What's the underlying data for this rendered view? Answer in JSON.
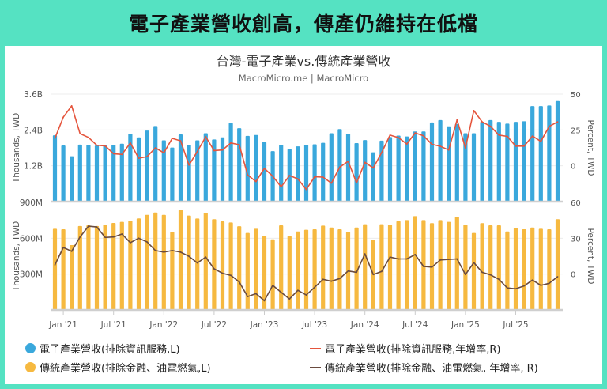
{
  "headline": "電子產業營收創高，傳產仍維持在低檔",
  "chart_data": {
    "type": "bar+line",
    "title": "台灣-電子產業vs.傳統產業營收",
    "subtitle": "MacroMicro.me | MacroMicro",
    "x": [
      "2020-12",
      "2021-01",
      "2021-02",
      "2021-03",
      "2021-04",
      "2021-05",
      "2021-06",
      "2021-07",
      "2021-08",
      "2021-09",
      "2021-10",
      "2021-11",
      "2021-12",
      "2022-01",
      "2022-02",
      "2022-03",
      "2022-04",
      "2022-05",
      "2022-06",
      "2022-07",
      "2022-08",
      "2022-09",
      "2022-10",
      "2022-11",
      "2022-12",
      "2023-01",
      "2023-02",
      "2023-03",
      "2023-04",
      "2023-05",
      "2023-06",
      "2023-07",
      "2023-08",
      "2023-09",
      "2023-10",
      "2023-11",
      "2023-12",
      "2024-01",
      "2024-02",
      "2024-03",
      "2024-04",
      "2024-05",
      "2024-06",
      "2024-07",
      "2024-08",
      "2024-09",
      "2024-10",
      "2024-11",
      "2024-12",
      "2025-01",
      "2025-02",
      "2025-03",
      "2025-04",
      "2025-05",
      "2025-06",
      "2025-07",
      "2025-08",
      "2025-09",
      "2025-10",
      "2025-11",
      "2025-12"
    ],
    "x_tick_labels": [
      "Jan '21",
      "Jul '21",
      "Jan '22",
      "Jul '22",
      "Jan '23",
      "Jul '23",
      "Jan '24",
      "Jul '24",
      "Jan '25",
      "Jul '25"
    ],
    "grid": true,
    "legend_position": "bottom",
    "panels": [
      {
        "left_axis": {
          "label": "Thousands, TWD",
          "ticks": [
            "1.2B",
            "2.4B",
            "3.6B"
          ],
          "range_billion": [
            0,
            3.6
          ]
        },
        "right_axis": {
          "label": "Percent, TWD",
          "ticks": [
            "0",
            "25",
            "50"
          ],
          "range": [
            -25,
            50
          ]
        },
        "series": [
          {
            "name": "電子產業營收(排除資訊服務,L)",
            "type": "bar",
            "axis": "left",
            "unit": "billion",
            "color": "#3aa8dc",
            "values": [
              2.22,
              1.88,
              1.52,
              1.91,
              1.9,
              1.88,
              1.9,
              1.9,
              1.94,
              2.27,
              2.15,
              2.38,
              2.53,
              2.05,
              1.81,
              2.25,
              1.9,
              2.05,
              2.29,
              2.08,
              2.15,
              2.63,
              2.46,
              2.2,
              2.23,
              2.0,
              1.69,
              1.9,
              1.76,
              1.85,
              1.9,
              1.92,
              1.97,
              2.29,
              2.43,
              2.27,
              1.96,
              2.06,
              1.65,
              2.04,
              2.16,
              2.21,
              2.18,
              2.35,
              2.35,
              2.65,
              2.73,
              2.52,
              2.6,
              2.29,
              2.29,
              2.67,
              2.73,
              2.67,
              2.61,
              2.67,
              2.69,
              3.2,
              3.2,
              3.22,
              3.37
            ]
          },
          {
            "name": "電子產業營收(排除資訊服務,年增率,R)",
            "type": "line",
            "axis": "right",
            "color": "#e5553d",
            "values": [
              19.2,
              33.9,
              41.8,
              22.4,
              19.8,
              14.3,
              13.9,
              8.4,
              7.9,
              15.9,
              5.3,
              6.4,
              12.5,
              9.0,
              19.1,
              17.4,
              0.5,
              10,
              20.2,
              10.6,
              11,
              15.9,
              14.7,
              -6.4,
              -11,
              -1.8,
              -7.3,
              -14.7,
              -6.8,
              -9.2,
              -16.5,
              -7.7,
              -7.9,
              -12.1,
              -0.9,
              3.1,
              -11.9,
              2.4,
              -1.5,
              9.2,
              21.4,
              19.6,
              15.2,
              22.9,
              20.9,
              15,
              13.6,
              11,
              32,
              12.5,
              38.5,
              30.6,
              27.5,
              21.4,
              20.5,
              13.7,
              13.7,
              20.7,
              17,
              27.5,
              30.6
            ]
          }
        ]
      },
      {
        "left_axis": {
          "label": "Thousands, TWD",
          "ticks": [
            "300M",
            "600M",
            "900M"
          ],
          "range_million": [
            0,
            900
          ]
        },
        "right_axis": {
          "label": "Percent, TWD",
          "ticks": [
            "0",
            "30",
            "60"
          ],
          "range": [
            -30,
            60
          ]
        },
        "series": [
          {
            "name": "傳統產業營收(排除金融、油電燃氣,L)",
            "type": "bar",
            "axis": "left",
            "unit": "million",
            "color": "#f6b940",
            "values": [
              679,
              675,
              543,
              702,
              708,
              702,
              713,
              728,
              737,
              746,
              766,
              796,
              816,
              796,
              653,
              836,
              790,
              765,
              812,
              759,
              741,
              732,
              701,
              644,
              679,
              618,
              591,
              708,
              618,
              657,
              671,
              675,
              706,
              690,
              675,
              653,
              690,
              717,
              587,
              717,
              712,
              743,
              752,
              785,
              752,
              726,
              752,
              737,
              779,
              712,
              644,
              726,
              708,
              708,
              657,
              684,
              675,
              690,
              679,
              675,
              759
            ]
          },
          {
            "name": "傳統產業營收(排除金融、油電燃氣, 年增率, R)",
            "type": "line",
            "axis": "right",
            "color": "#6a4b3f",
            "values": [
              7.7,
              22.3,
              19.1,
              31.1,
              40.1,
              39.4,
              30.7,
              31.1,
              33.5,
              26.3,
              30,
              26.9,
              19.7,
              18.4,
              19.7,
              18.4,
              14.9,
              9.4,
              14.2,
              4.4,
              0.7,
              -1.1,
              -6.6,
              -18.8,
              -16.4,
              -22.3,
              -9.4,
              -15.3,
              -20.8,
              -13.6,
              -17.5,
              -11,
              -4.4,
              -5.9,
              -3.7,
              2.6,
              1.5,
              16.9,
              -0.4,
              2.2,
              14.2,
              12.7,
              12.7,
              16.4,
              6.4,
              5.9,
              11.8,
              12.3,
              12.7,
              -0.4,
              9.6,
              1.5,
              -0.7,
              -4.4,
              -11.6,
              -12.3,
              -9.9,
              -5,
              -9.4,
              -7.7,
              -2.2
            ]
          }
        ]
      }
    ]
  }
}
